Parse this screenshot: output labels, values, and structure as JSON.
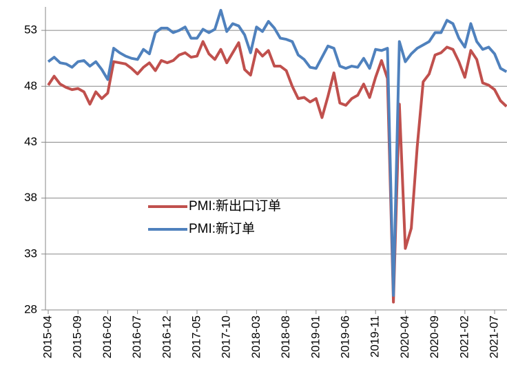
{
  "chart_data": {
    "type": "line",
    "categories": [
      "2015-04",
      null,
      null,
      null,
      null,
      "2015-09",
      null,
      null,
      null,
      null,
      "2016-02",
      null,
      null,
      null,
      null,
      "2016-07",
      null,
      null,
      null,
      null,
      "2016-12",
      null,
      null,
      null,
      null,
      "2017-05",
      null,
      null,
      null,
      null,
      "2017-10",
      null,
      null,
      null,
      null,
      "2018-03",
      null,
      null,
      null,
      null,
      "2018-08",
      null,
      null,
      null,
      null,
      "2019-01",
      null,
      null,
      null,
      null,
      "2019-06",
      null,
      null,
      null,
      null,
      "2019-11",
      null,
      null,
      null,
      null,
      "2020-04",
      null,
      null,
      null,
      null,
      "2020-09",
      null,
      null,
      null,
      null,
      "2021-02",
      null,
      null,
      null,
      null,
      "2021-07",
      null,
      null
    ],
    "series": [
      {
        "name": "PMI:新出口订单",
        "color": "#c0504d",
        "values": [
          48.1,
          48.9,
          48.2,
          47.9,
          47.7,
          47.8,
          47.5,
          46.4,
          47.5,
          46.9,
          47.4,
          50.2,
          50.1,
          50.0,
          49.6,
          49.1,
          49.7,
          50.1,
          49.4,
          50.3,
          50.1,
          50.3,
          50.8,
          51.0,
          50.6,
          50.7,
          52.0,
          50.9,
          50.4,
          51.3,
          50.1,
          51.0,
          51.9,
          49.5,
          49.0,
          51.3,
          50.7,
          51.2,
          49.8,
          49.8,
          49.4,
          48.0,
          46.9,
          47.0,
          46.6,
          46.9,
          45.2,
          47.1,
          49.2,
          46.5,
          46.3,
          46.9,
          47.2,
          48.2,
          47.0,
          48.8,
          50.3,
          48.7,
          28.7,
          46.4,
          33.5,
          35.3,
          42.6,
          48.4,
          49.1,
          50.8,
          51.0,
          51.5,
          51.3,
          50.2,
          48.8,
          51.2,
          50.4,
          48.3,
          48.1,
          47.7,
          46.7,
          46.2
        ]
      },
      {
        "name": "PMI:新订单",
        "color": "#4f81bd",
        "values": [
          50.2,
          50.6,
          50.1,
          50.0,
          49.7,
          50.2,
          50.3,
          49.8,
          50.2,
          49.5,
          48.6,
          51.4,
          51.0,
          50.7,
          50.5,
          50.4,
          51.3,
          50.9,
          52.8,
          53.2,
          53.2,
          52.8,
          53.0,
          53.3,
          52.3,
          52.3,
          53.1,
          52.8,
          53.1,
          54.8,
          52.9,
          53.6,
          53.4,
          52.6,
          51.0,
          53.3,
          52.9,
          53.8,
          53.2,
          52.3,
          52.2,
          52.0,
          50.8,
          50.4,
          49.7,
          49.6,
          50.6,
          51.6,
          51.4,
          49.8,
          49.6,
          49.8,
          49.7,
          50.5,
          49.6,
          51.3,
          51.2,
          51.4,
          29.3,
          52.0,
          50.2,
          50.9,
          51.4,
          51.7,
          52.0,
          52.8,
          52.8,
          53.9,
          53.6,
          52.3,
          51.5,
          53.6,
          52.0,
          51.3,
          51.5,
          50.9,
          49.6,
          49.3
        ]
      }
    ],
    "ylim": [
      28,
      55.1
    ],
    "yticks": [
      28,
      33,
      38,
      43,
      48,
      53
    ],
    "grid": true
  }
}
